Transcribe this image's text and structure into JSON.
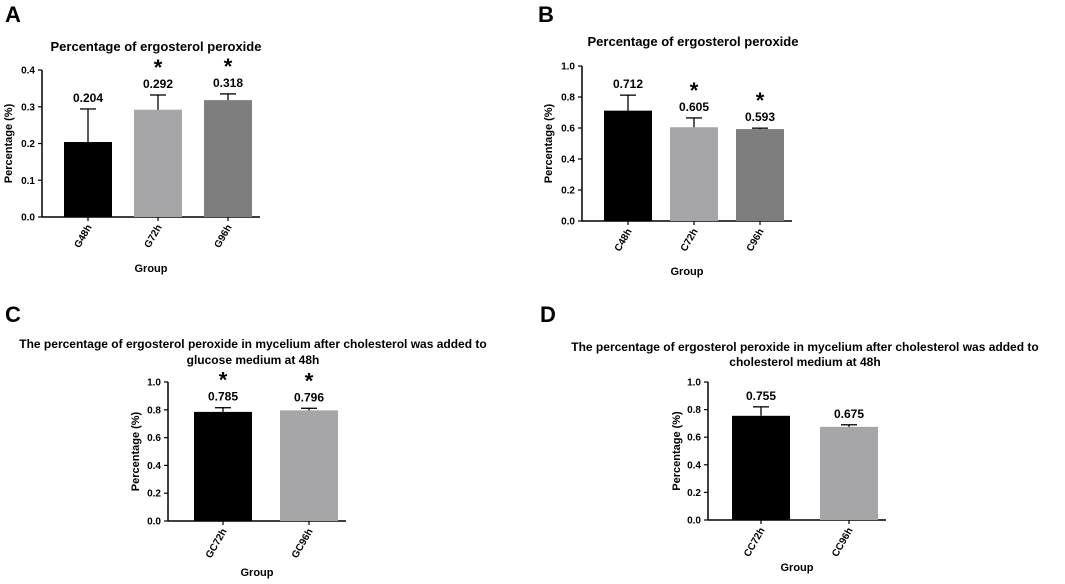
{
  "chart_data": [
    {
      "type": "bar",
      "panel": "A",
      "title_lines": [
        "Percentage of ergosterol peroxide"
      ],
      "xlabel": "Group",
      "ylabel": "Percentage (%)",
      "ylim": [
        0,
        0.4
      ],
      "yticks": [
        "0.0",
        "0.1",
        "0.2",
        "0.3",
        "0.4"
      ],
      "categories": [
        "G48h",
        "G72h",
        "G96h"
      ],
      "values": [
        0.204,
        0.292,
        0.318
      ],
      "errors": [
        0.09,
        0.04,
        0.017
      ],
      "value_labels": [
        "0.204",
        "0.292",
        "0.318"
      ],
      "significant": [
        false,
        true,
        true
      ],
      "colors": [
        "#000000",
        "#a6a6a8",
        "#7e7e7e"
      ],
      "grid": false
    },
    {
      "type": "bar",
      "panel": "B",
      "title_lines": [
        "Percentage of ergosterol peroxide"
      ],
      "xlabel": "Group",
      "ylabel": "Percentage (%)",
      "ylim": [
        0,
        1.0
      ],
      "yticks": [
        "0.0",
        "0.2",
        "0.4",
        "0.6",
        "0.8",
        "1.0"
      ],
      "categories": [
        "C48h",
        "C72h",
        "C96h"
      ],
      "values": [
        0.712,
        0.605,
        0.593
      ],
      "errors": [
        0.1,
        0.06,
        0.006
      ],
      "value_labels": [
        "0.712",
        "0.605",
        "0.593"
      ],
      "significant": [
        false,
        true,
        true
      ],
      "colors": [
        "#000000",
        "#a6a6a8",
        "#7e7e7e"
      ],
      "grid": false
    },
    {
      "type": "bar",
      "panel": "C",
      "title_lines": [
        "The percentage of ergosterol peroxide in mycelium after cholesterol was added to",
        "glucose medium at 48h"
      ],
      "xlabel": "Group",
      "ylabel": "Percentage (%)",
      "ylim": [
        0,
        1.0
      ],
      "yticks": [
        "0.0",
        "0.2",
        "0.4",
        "0.6",
        "0.8",
        "1.0"
      ],
      "categories": [
        "GC72h",
        "GC96h"
      ],
      "values": [
        0.785,
        0.796
      ],
      "errors": [
        0.03,
        0.015
      ],
      "value_labels": [
        "0.785",
        "0.796"
      ],
      "significant": [
        true,
        true
      ],
      "colors": [
        "#000000",
        "#a6a6a8"
      ],
      "grid": false
    },
    {
      "type": "bar",
      "panel": "D",
      "title_lines": [
        "The percentage of ergosterol peroxide in mycelium after cholesterol was added to",
        "cholesterol medium at 48h"
      ],
      "xlabel": "Group",
      "ylabel": "Percentage (%)",
      "ylim": [
        0,
        1.0
      ],
      "yticks": [
        "0.0",
        "0.2",
        "0.4",
        "0.6",
        "0.8",
        "1.0"
      ],
      "categories": [
        "CC72h",
        "CC96h"
      ],
      "values": [
        0.755,
        0.675
      ],
      "errors": [
        0.065,
        0.015
      ],
      "value_labels": [
        "0.755",
        "0.675"
      ],
      "significant": [
        false,
        false
      ],
      "colors": [
        "#000000",
        "#a6a6a8"
      ],
      "grid": false
    }
  ],
  "significance_marker": "*"
}
